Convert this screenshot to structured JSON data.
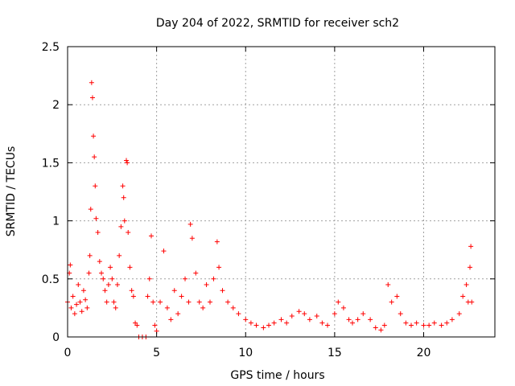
{
  "chart_data": {
    "type": "scatter",
    "title": "Day 204 of 2022, SRMTID for receiver sch2",
    "xlabel": "GPS time / hours",
    "ylabel": "SRMTID / TECUs",
    "xlim": [
      0,
      24
    ],
    "ylim": [
      0,
      2.5
    ],
    "xticks": [
      0,
      5,
      10,
      15,
      20
    ],
    "yticks": [
      0,
      0.5,
      1,
      1.5,
      2,
      2.5
    ],
    "xtick_labels": [
      "0",
      "5",
      "10",
      "15",
      "20"
    ],
    "ytick_labels": [
      "0",
      "0.5",
      "1",
      "1.5",
      "2",
      "2.5"
    ],
    "grid": true,
    "marker": "+",
    "color": "#ff0000",
    "series": [
      {
        "name": "sch2",
        "points": [
          [
            0.0,
            0.3
          ],
          [
            0.1,
            0.55
          ],
          [
            0.15,
            0.62
          ],
          [
            0.2,
            0.25
          ],
          [
            0.3,
            0.35
          ],
          [
            0.4,
            0.2
          ],
          [
            0.5,
            0.28
          ],
          [
            0.6,
            0.45
          ],
          [
            0.7,
            0.3
          ],
          [
            0.8,
            0.22
          ],
          [
            0.9,
            0.4
          ],
          [
            1.0,
            0.32
          ],
          [
            1.1,
            0.25
          ],
          [
            1.2,
            0.55
          ],
          [
            1.25,
            0.7
          ],
          [
            1.3,
            1.1
          ],
          [
            1.35,
            2.19
          ],
          [
            1.4,
            2.06
          ],
          [
            1.45,
            1.73
          ],
          [
            1.5,
            1.55
          ],
          [
            1.55,
            1.3
          ],
          [
            1.6,
            1.02
          ],
          [
            1.7,
            0.9
          ],
          [
            1.8,
            0.65
          ],
          [
            1.9,
            0.55
          ],
          [
            2.0,
            0.5
          ],
          [
            2.1,
            0.4
          ],
          [
            2.2,
            0.3
          ],
          [
            2.3,
            0.45
          ],
          [
            2.4,
            0.6
          ],
          [
            2.5,
            0.5
          ],
          [
            2.6,
            0.3
          ],
          [
            2.7,
            0.25
          ],
          [
            2.8,
            0.45
          ],
          [
            2.9,
            0.7
          ],
          [
            3.0,
            0.95
          ],
          [
            3.1,
            1.3
          ],
          [
            3.15,
            1.2
          ],
          [
            3.2,
            1.0
          ],
          [
            3.3,
            1.52
          ],
          [
            3.35,
            1.5
          ],
          [
            3.4,
            0.9
          ],
          [
            3.5,
            0.6
          ],
          [
            3.6,
            0.4
          ],
          [
            3.7,
            0.35
          ],
          [
            3.8,
            0.12
          ],
          [
            3.9,
            0.1
          ],
          [
            4.0,
            0.0
          ],
          [
            4.2,
            0.0
          ],
          [
            4.4,
            0.0
          ],
          [
            4.5,
            0.35
          ],
          [
            4.6,
            0.5
          ],
          [
            4.7,
            0.87
          ],
          [
            4.8,
            0.3
          ],
          [
            4.9,
            0.1
          ],
          [
            5.0,
            0.05
          ],
          [
            5.2,
            0.3
          ],
          [
            5.4,
            0.74
          ],
          [
            5.6,
            0.25
          ],
          [
            5.8,
            0.15
          ],
          [
            6.0,
            0.4
          ],
          [
            6.2,
            0.2
          ],
          [
            6.4,
            0.35
          ],
          [
            6.6,
            0.5
          ],
          [
            6.8,
            0.3
          ],
          [
            6.9,
            0.97
          ],
          [
            7.0,
            0.85
          ],
          [
            7.2,
            0.55
          ],
          [
            7.4,
            0.3
          ],
          [
            7.6,
            0.25
          ],
          [
            7.8,
            0.45
          ],
          [
            8.0,
            0.3
          ],
          [
            8.2,
            0.5
          ],
          [
            8.4,
            0.82
          ],
          [
            8.5,
            0.6
          ],
          [
            8.7,
            0.4
          ],
          [
            9.0,
            0.3
          ],
          [
            9.3,
            0.25
          ],
          [
            9.6,
            0.2
          ],
          [
            10.0,
            0.15
          ],
          [
            10.3,
            0.12
          ],
          [
            10.6,
            0.1
          ],
          [
            11.0,
            0.08
          ],
          [
            11.3,
            0.1
          ],
          [
            11.6,
            0.12
          ],
          [
            12.0,
            0.15
          ],
          [
            12.3,
            0.12
          ],
          [
            12.6,
            0.18
          ],
          [
            13.0,
            0.22
          ],
          [
            13.3,
            0.2
          ],
          [
            13.6,
            0.15
          ],
          [
            14.0,
            0.18
          ],
          [
            14.3,
            0.12
          ],
          [
            14.6,
            0.1
          ],
          [
            15.0,
            0.2
          ],
          [
            15.2,
            0.3
          ],
          [
            15.5,
            0.25
          ],
          [
            15.8,
            0.15
          ],
          [
            16.0,
            0.12
          ],
          [
            16.3,
            0.15
          ],
          [
            16.6,
            0.2
          ],
          [
            17.0,
            0.15
          ],
          [
            17.3,
            0.08
          ],
          [
            17.6,
            0.06
          ],
          [
            17.8,
            0.1
          ],
          [
            18.0,
            0.45
          ],
          [
            18.2,
            0.3
          ],
          [
            18.5,
            0.35
          ],
          [
            18.7,
            0.2
          ],
          [
            19.0,
            0.12
          ],
          [
            19.3,
            0.1
          ],
          [
            19.6,
            0.12
          ],
          [
            20.0,
            0.1
          ],
          [
            20.3,
            0.1
          ],
          [
            20.6,
            0.12
          ],
          [
            21.0,
            0.1
          ],
          [
            21.3,
            0.12
          ],
          [
            21.6,
            0.15
          ],
          [
            22.0,
            0.2
          ],
          [
            22.2,
            0.35
          ],
          [
            22.4,
            0.45
          ],
          [
            22.5,
            0.3
          ],
          [
            22.6,
            0.6
          ],
          [
            22.65,
            0.78
          ],
          [
            22.7,
            0.3
          ]
        ]
      }
    ]
  }
}
